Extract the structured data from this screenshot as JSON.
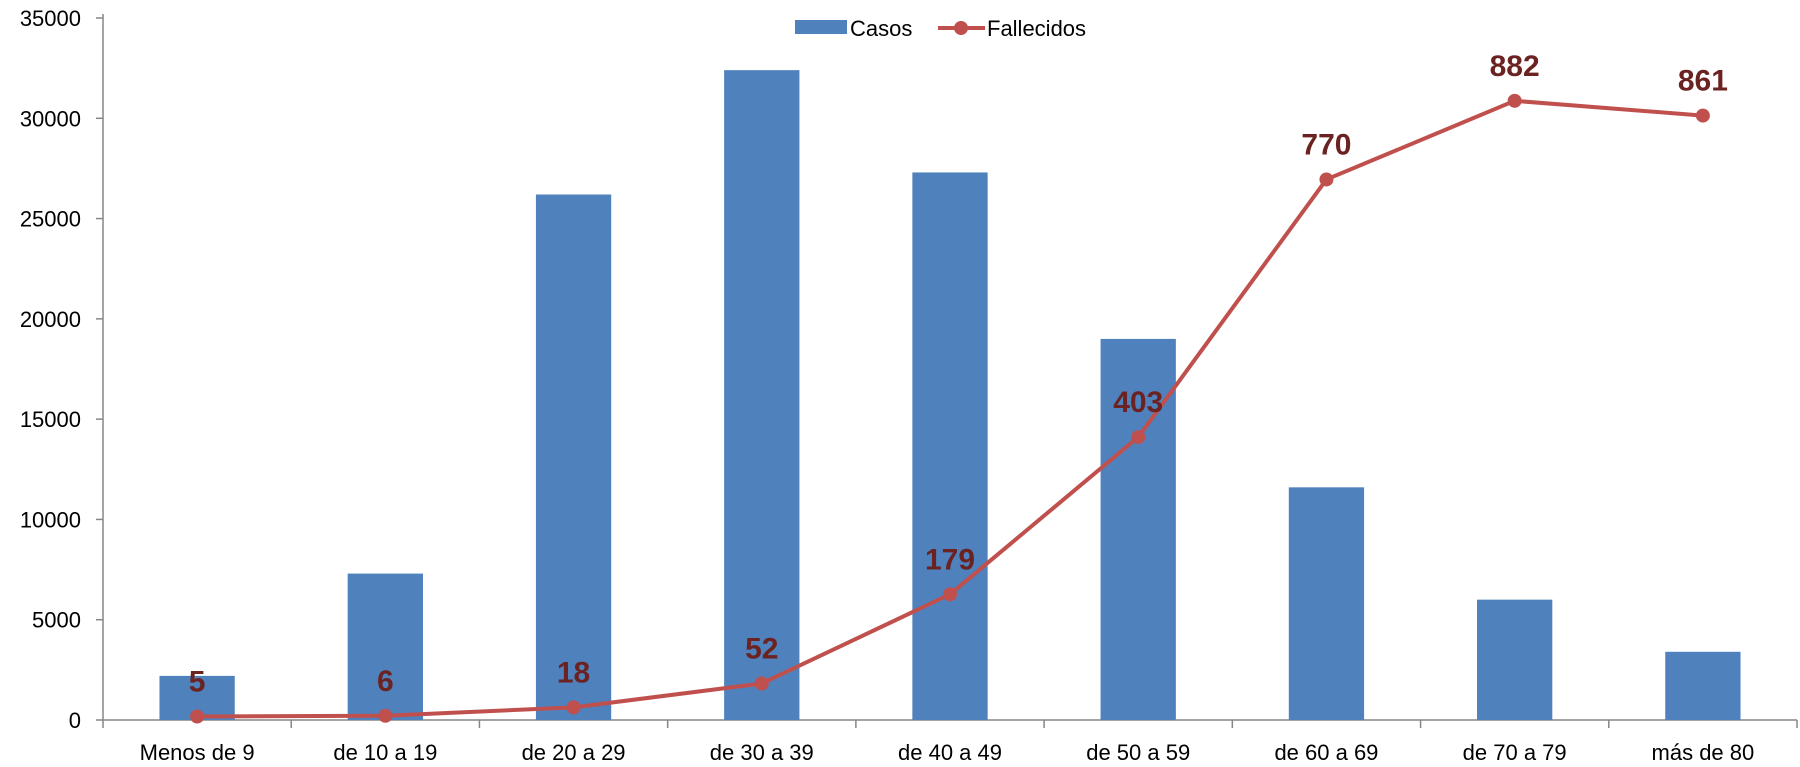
{
  "chart_data": {
    "type": "bar",
    "categories": [
      "Menos de 9",
      "de 10 a 19",
      "de 20 a 29",
      "de 30 a 39",
      "de 40 a 49",
      "de 50 a 59",
      "de 60 a 69",
      "de 70 a 79",
      "más de 80"
    ],
    "series": [
      {
        "name": "Casos",
        "type": "bar",
        "color": "#4f81bd",
        "axis": "left",
        "values": [
          2200,
          7300,
          26200,
          32400,
          27300,
          19000,
          11600,
          6000,
          3400
        ]
      },
      {
        "name": "Fallecidos",
        "type": "line",
        "color": "#c0504d",
        "axis": "right",
        "values": [
          5,
          6,
          18,
          52,
          179,
          403,
          770,
          882,
          861
        ],
        "data_labels": [
          "5",
          "6",
          "18",
          "52",
          "179",
          "403",
          "770",
          "882",
          "861"
        ]
      }
    ],
    "y_ticks": [
      "0",
      "5000",
      "10000",
      "15000",
      "20000",
      "25000",
      "30000",
      "35000"
    ],
    "ylim": [
      0,
      35000
    ],
    "y2lim": [
      0,
      1000
    ],
    "y2_axis_visible": false,
    "grid": false,
    "legend_position": "top-center",
    "data_label_color": "#6b2322",
    "title": "",
    "xlabel": "",
    "ylabel": ""
  }
}
